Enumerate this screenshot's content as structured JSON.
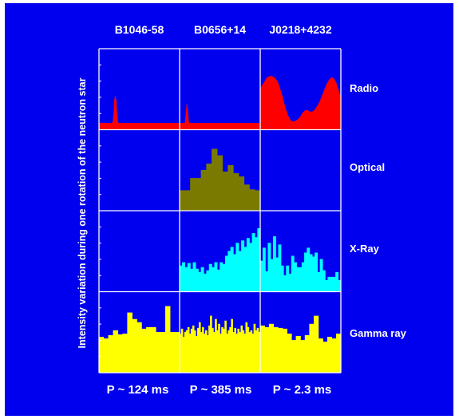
{
  "chart_data": {
    "type": "area",
    "ylabel": "Intensity variation during one rotation of the neutron star",
    "columns": [
      {
        "name": "B1046-58",
        "period": "P ~ 124 ms"
      },
      {
        "name": "B0656+14",
        "period": "P ~ 385 ms"
      },
      {
        "name": "J0218+4232",
        "period": "P ~ 2.3 ms"
      }
    ],
    "rows": [
      {
        "name": "Radio",
        "color": "#ff0000"
      },
      {
        "name": "Optical",
        "color": "#7a7a00"
      },
      {
        "name": "X-Ray",
        "color": "#00ffff"
      },
      {
        "name": "Gamma ray",
        "color": "#ffff00"
      }
    ],
    "ylim": [
      0,
      1
    ],
    "panels": [
      {
        "row": "Radio",
        "column": "B1046-58",
        "style": "line",
        "values": [
          0.08,
          0.08,
          0.08,
          0.08,
          0.08,
          0.08,
          0.08,
          0.08,
          0.08,
          0.08,
          0.08,
          0.08,
          0.08,
          0.08,
          0.08,
          0.08,
          0.08,
          0.1,
          0.18,
          0.36,
          0.42,
          0.36,
          0.2,
          0.1,
          0.08,
          0.08,
          0.08,
          0.08,
          0.08,
          0.08,
          0.08,
          0.08,
          0.08,
          0.08,
          0.08,
          0.08,
          0.08,
          0.08,
          0.08,
          0.08,
          0.08,
          0.08,
          0.08,
          0.08,
          0.08,
          0.08,
          0.08,
          0.08,
          0.08,
          0.08,
          0.08,
          0.08,
          0.08,
          0.08,
          0.08,
          0.08,
          0.08,
          0.08,
          0.08,
          0.08,
          0.08,
          0.08,
          0.08,
          0.08,
          0.08,
          0.08,
          0.08,
          0.08,
          0.08,
          0.08,
          0.08,
          0.08,
          0.08,
          0.08,
          0.08,
          0.08,
          0.08,
          0.08,
          0.08,
          0.08,
          0.08,
          0.08,
          0.08,
          0.08,
          0.08,
          0.08,
          0.08,
          0.08,
          0.08,
          0.08,
          0.08,
          0.08,
          0.08,
          0.08,
          0.08,
          0.08,
          0.08,
          0.08,
          0.08,
          0.08
        ]
      },
      {
        "row": "Radio",
        "column": "B0656+14",
        "style": "line",
        "values": [
          0.08,
          0.08,
          0.08,
          0.08,
          0.08,
          0.08,
          0.08,
          0.1,
          0.22,
          0.32,
          0.22,
          0.1,
          0.08,
          0.08,
          0.08,
          0.08,
          0.08,
          0.08,
          0.08,
          0.08,
          0.08,
          0.08,
          0.08,
          0.08,
          0.08,
          0.08,
          0.08,
          0.08,
          0.08,
          0.08,
          0.08,
          0.08,
          0.08,
          0.08,
          0.08,
          0.08,
          0.08,
          0.08,
          0.08,
          0.08,
          0.08,
          0.08,
          0.08,
          0.08,
          0.08,
          0.08,
          0.08,
          0.08,
          0.08,
          0.08,
          0.08,
          0.08,
          0.08,
          0.08,
          0.08,
          0.08,
          0.08,
          0.08,
          0.08,
          0.08,
          0.08,
          0.08,
          0.08,
          0.08,
          0.08,
          0.08,
          0.08,
          0.08,
          0.08,
          0.08,
          0.08,
          0.08,
          0.08,
          0.08,
          0.08,
          0.08,
          0.08,
          0.08,
          0.08,
          0.08,
          0.08,
          0.08,
          0.08,
          0.08,
          0.08,
          0.08,
          0.08,
          0.08,
          0.08,
          0.08,
          0.08,
          0.08,
          0.08,
          0.08,
          0.08,
          0.08,
          0.08,
          0.08,
          0.08,
          0.08
        ]
      },
      {
        "row": "Radio",
        "column": "J0218+4232",
        "style": "line",
        "values": [
          0.48,
          0.54,
          0.57,
          0.6,
          0.64,
          0.65,
          0.66,
          0.66,
          0.65,
          0.64,
          0.61,
          0.58,
          0.52,
          0.46,
          0.39,
          0.31,
          0.24,
          0.18,
          0.14,
          0.11,
          0.1,
          0.1,
          0.11,
          0.12,
          0.14,
          0.16,
          0.2,
          0.22,
          0.24,
          0.24,
          0.23,
          0.22,
          0.22,
          0.23,
          0.25,
          0.28,
          0.31,
          0.35,
          0.4,
          0.45,
          0.5,
          0.55,
          0.59,
          0.62,
          0.64,
          0.64,
          0.62,
          0.58,
          0.52,
          0.45,
          0.4
        ]
      },
      {
        "row": "Optical",
        "column": "B0656+14",
        "style": "step",
        "values": [
          0.25,
          0.25,
          0.4,
          0.4,
          0.5,
          0.58,
          0.76,
          0.68,
          0.48,
          0.56,
          0.46,
          0.42,
          0.32,
          0.26,
          0.25
        ]
      },
      {
        "row": "X-Ray",
        "column": "B0656+14",
        "style": "step",
        "values": [
          0.32,
          0.36,
          0.3,
          0.35,
          0.28,
          0.36,
          0.28,
          0.24,
          0.3,
          0.22,
          0.26,
          0.34,
          0.3,
          0.36,
          0.27,
          0.36,
          0.34,
          0.44,
          0.5,
          0.55,
          0.46,
          0.6,
          0.5,
          0.63,
          0.55,
          0.66,
          0.6,
          0.72,
          0.67,
          0.78
        ]
      },
      {
        "row": "X-Ray",
        "column": "J0218+4232",
        "style": "step",
        "values": [
          0.38,
          0.54,
          0.25,
          0.6,
          0.4,
          0.68,
          0.42,
          0.58,
          0.32,
          0.2,
          0.32,
          0.22,
          0.44,
          0.36,
          0.3,
          0.3,
          0.36,
          0.48,
          0.54,
          0.46,
          0.43,
          0.48,
          0.24,
          0.4,
          0.26,
          0.14,
          0.18,
          0.18,
          0.18,
          0.24,
          0.14
        ]
      },
      {
        "row": "Gamma ray",
        "column": "B1046-58",
        "style": "step",
        "values": [
          0.44,
          0.42,
          0.46,
          0.52,
          0.47,
          0.48,
          0.74,
          0.66,
          0.62,
          0.54,
          0.56,
          0.56,
          0.5,
          0.5,
          0.82,
          0.5,
          0.5
        ]
      },
      {
        "row": "Gamma ray",
        "column": "B0656+14",
        "style": "step",
        "values": [
          0.48,
          0.54,
          0.44,
          0.5,
          0.52,
          0.56,
          0.48,
          0.54,
          0.58,
          0.52,
          0.45,
          0.55,
          0.62,
          0.5,
          0.56,
          0.48,
          0.52,
          0.46,
          0.58,
          0.7,
          0.55,
          0.5,
          0.66,
          0.52,
          0.6,
          0.48,
          0.56,
          0.54,
          0.64,
          0.48,
          0.52,
          0.56,
          0.66,
          0.5,
          0.55,
          0.48,
          0.54,
          0.5,
          0.58,
          0.52,
          0.48,
          0.62,
          0.56,
          0.5,
          0.52,
          0.48,
          0.6,
          0.52,
          0.55,
          0.5
        ]
      },
      {
        "row": "Gamma ray",
        "column": "J0218+4232",
        "style": "step",
        "values": [
          0.58,
          0.56,
          0.6,
          0.56,
          0.55,
          0.54,
          0.48,
          0.4,
          0.45,
          0.4,
          0.46,
          0.6,
          0.7,
          0.42,
          0.38,
          0.44,
          0.42,
          0.48
        ]
      }
    ]
  }
}
